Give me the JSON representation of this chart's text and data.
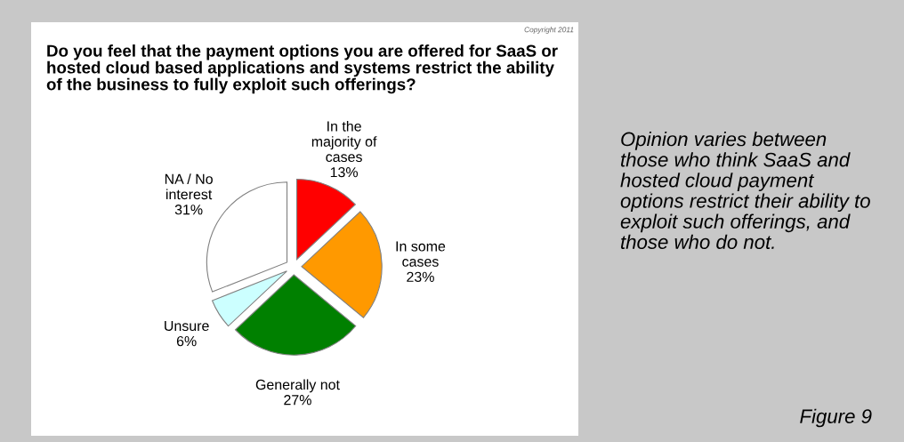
{
  "chart_data": {
    "type": "pie",
    "title": "Do you feel that the payment options you are offered for SaaS or hosted cloud based applications and systems restrict the ability of the business to fully exploit such offerings?",
    "categories": [
      "In the\nmajority of\ncases",
      "In some\ncases",
      "Generally not",
      "Unsure",
      "NA / No\ninterest"
    ],
    "values": [
      13,
      23,
      27,
      6,
      31
    ],
    "value_labels": [
      "13%",
      "23%",
      "27%",
      "6%",
      "31%"
    ],
    "colors": [
      "#ff0000",
      "#ff9900",
      "#008000",
      "#ccffff",
      "#ffffff"
    ],
    "annotations": [
      "Opinion varies between those who think SaaS and hosted cloud payment options restrict their ability to exploit such offerings, and those who do not.",
      "Figure 9",
      "Copyright 2011"
    ]
  }
}
